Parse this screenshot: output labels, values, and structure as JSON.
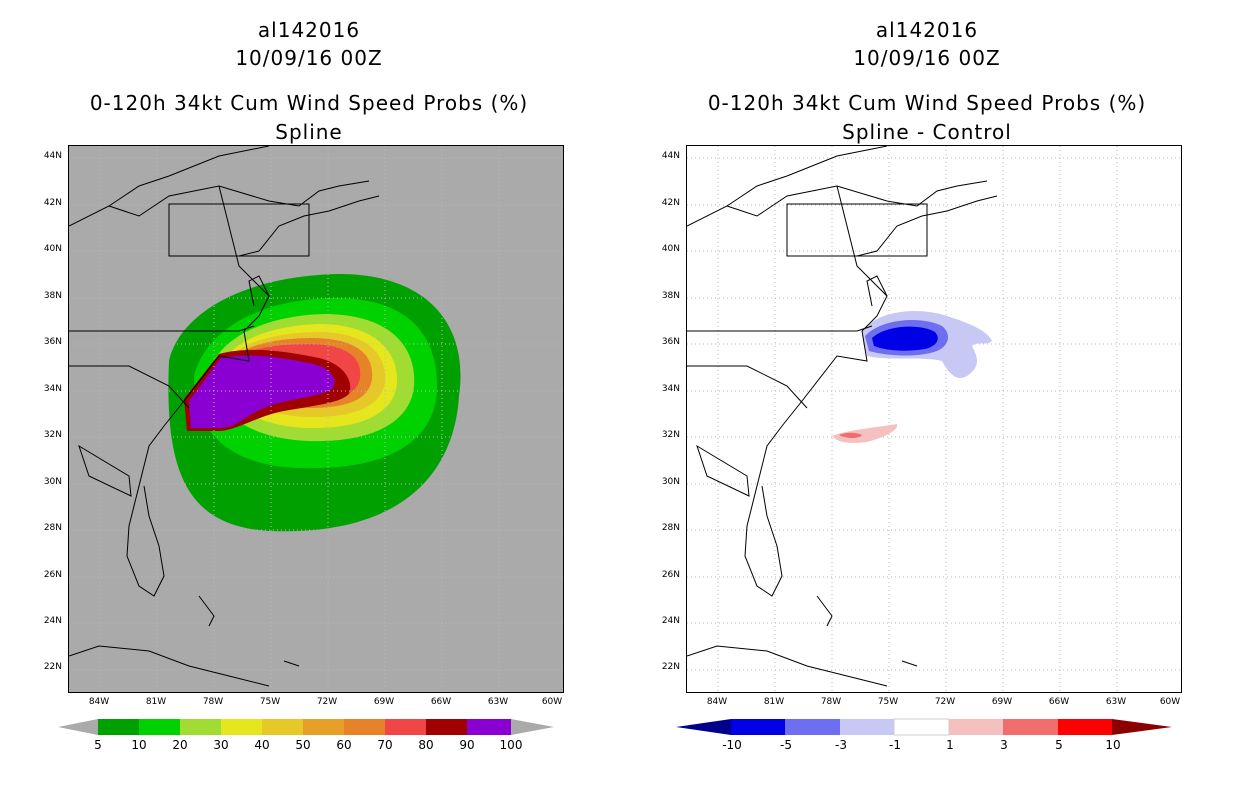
{
  "panels": [
    {
      "id": "spline",
      "title": {
        "storm": "al142016",
        "date": "10/09/16 00Z",
        "product": "0-120h 34kt Cum Wind Speed Probs (%)",
        "subtitle": "Spline"
      },
      "colorbar": {
        "labels": [
          "5",
          "10",
          "20",
          "30",
          "40",
          "50",
          "60",
          "70",
          "80",
          "90",
          "100"
        ],
        "colors": [
          "#00a000",
          "#00d200",
          "#a0dc32",
          "#e6e61e",
          "#e6c828",
          "#e6a028",
          "#e68228",
          "#f04646",
          "#a00000",
          "#8a00d2"
        ]
      }
    },
    {
      "id": "diff",
      "title": {
        "storm": "al142016",
        "date": "10/09/16 00Z",
        "product": "0-120h 34kt Cum Wind Speed Probs (%)",
        "subtitle": "Spline - Control"
      },
      "colorbar": {
        "labels": [
          "-10",
          "-5",
          "-3",
          "-1",
          "1",
          "3",
          "5",
          "10"
        ],
        "colors": [
          "#00008c",
          "#0000e6",
          "#6e6ef0",
          "#c8c8f5",
          "#ffffff",
          "#f5c0c0",
          "#f06e6e",
          "#ff0000",
          "#8c0000"
        ]
      }
    }
  ],
  "axes": {
    "lat_labels": [
      "44N",
      "42N",
      "40N",
      "38N",
      "36N",
      "34N",
      "32N",
      "30N",
      "28N",
      "26N",
      "24N",
      "22N"
    ],
    "lon_labels": [
      "84W",
      "81W",
      "78W",
      "75W",
      "72W",
      "69W",
      "66W",
      "63W",
      "60W"
    ]
  },
  "colors": {
    "map_bg_left": "#aaaaaa",
    "coast": "#000000",
    "grid": "#aaaaaa"
  }
}
